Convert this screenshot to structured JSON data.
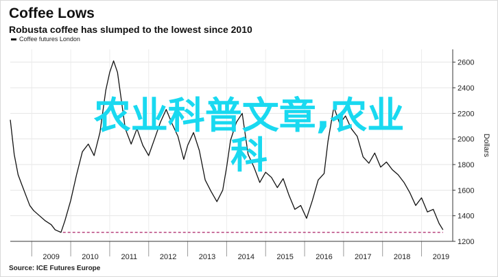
{
  "title": "Coffee Lows",
  "subtitle": "Robusta coffee has slumped to the lowest since 2010",
  "source": "Source: ICE Futures Europe",
  "overlay_text": {
    "line1": "农业科普文章,农业",
    "line2": "科"
  },
  "chart_data": {
    "type": "line",
    "legend": [
      {
        "name": "Coffee futures London",
        "color": "#111111"
      }
    ],
    "ylabel": "Dollars",
    "ylim": [
      1200,
      2700
    ],
    "yticks": [
      1200,
      1400,
      1600,
      1800,
      2000,
      2200,
      2400,
      2600
    ],
    "xticks": [
      "2009",
      "2010",
      "2011",
      "2012",
      "2013",
      "2014",
      "2015",
      "2016",
      "2017",
      "2018",
      "2019"
    ],
    "xlim": [
      2008.45,
      2019.8
    ],
    "grid": true,
    "reference_line": {
      "value": 1270,
      "from": 2009.8,
      "to": 2019.55,
      "color": "#b03070",
      "style": "dashed"
    },
    "series": [
      {
        "name": "Coffee futures London",
        "color": "#111111",
        "x": [
          2008.45,
          2008.55,
          2008.65,
          2008.75,
          2008.85,
          2008.95,
          2009.05,
          2009.2,
          2009.35,
          2009.5,
          2009.6,
          2009.75,
          2009.85,
          2010.0,
          2010.15,
          2010.3,
          2010.45,
          2010.6,
          2010.75,
          2010.9,
          2011.0,
          2011.1,
          2011.2,
          2011.3,
          2011.4,
          2011.55,
          2011.7,
          2011.85,
          2012.0,
          2012.15,
          2012.3,
          2012.45,
          2012.6,
          2012.75,
          2012.9,
          2013.0,
          2013.15,
          2013.3,
          2013.45,
          2013.6,
          2013.75,
          2013.9,
          2014.0,
          2014.1,
          2014.25,
          2014.4,
          2014.55,
          2014.7,
          2014.85,
          2015.0,
          2015.15,
          2015.3,
          2015.45,
          2015.6,
          2015.75,
          2015.9,
          2016.05,
          2016.2,
          2016.35,
          2016.5,
          2016.6,
          2016.75,
          2016.9,
          2017.05,
          2017.2,
          2017.35,
          2017.5,
          2017.65,
          2017.8,
          2017.95,
          2018.1,
          2018.25,
          2018.4,
          2018.55,
          2018.7,
          2018.85,
          2019.0,
          2019.15,
          2019.3,
          2019.45,
          2019.55
        ],
        "y": [
          2150,
          1880,
          1720,
          1640,
          1560,
          1480,
          1440,
          1400,
          1360,
          1330,
          1290,
          1270,
          1360,
          1520,
          1720,
          1900,
          1960,
          1870,
          2050,
          2380,
          2520,
          2610,
          2520,
          2300,
          2080,
          1960,
          2080,
          1950,
          1870,
          2000,
          2130,
          2230,
          2120,
          2020,
          1840,
          1950,
          2050,
          1910,
          1680,
          1590,
          1510,
          1600,
          1780,
          1990,
          2130,
          2200,
          1880,
          1780,
          1660,
          1740,
          1700,
          1620,
          1690,
          1560,
          1450,
          1480,
          1380,
          1520,
          1680,
          1730,
          1980,
          2250,
          2120,
          2180,
          2080,
          2020,
          1860,
          1810,
          1890,
          1780,
          1820,
          1760,
          1720,
          1660,
          1580,
          1480,
          1540,
          1430,
          1450,
          1340,
          1290
        ]
      }
    ]
  }
}
